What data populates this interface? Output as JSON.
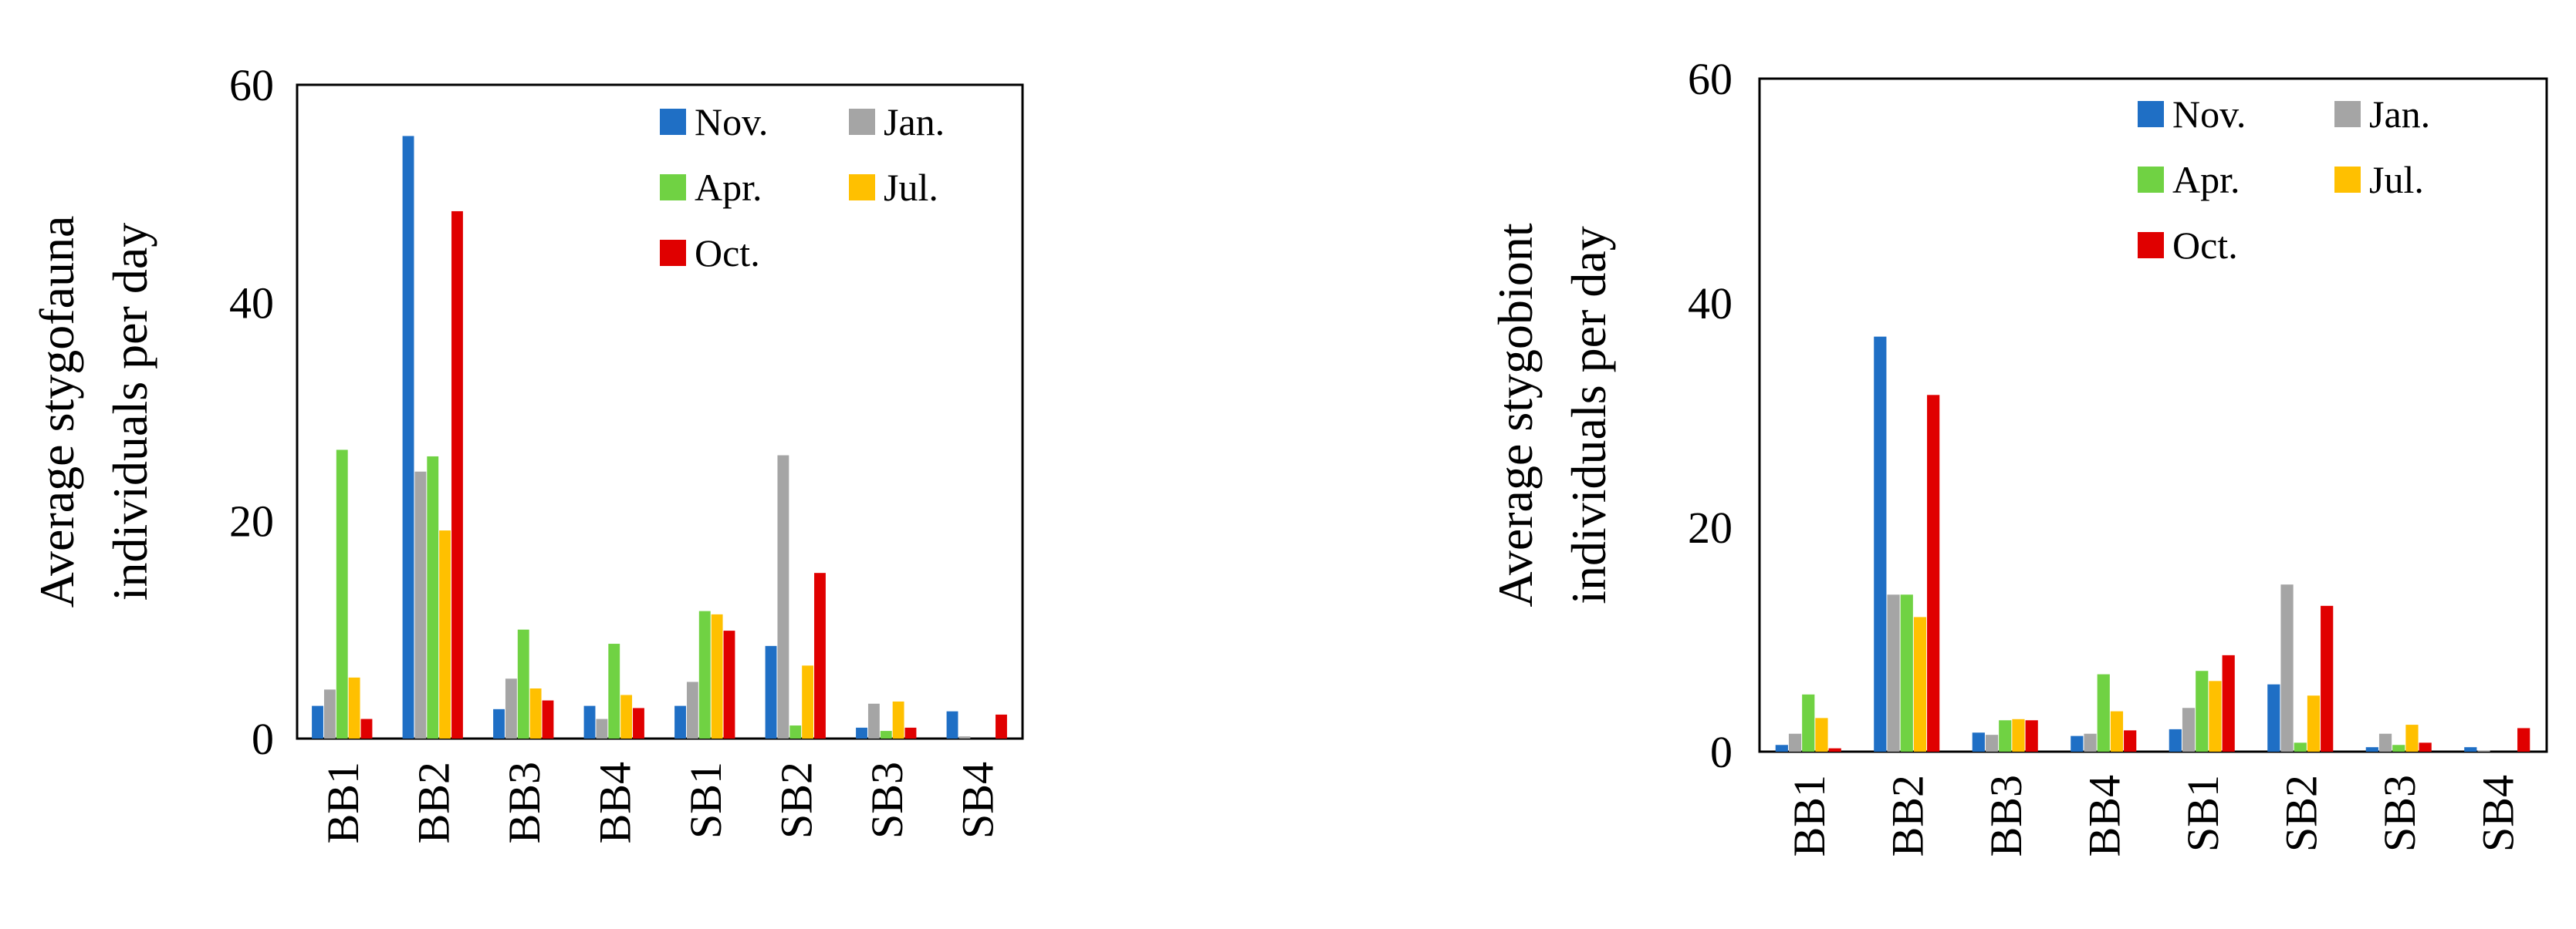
{
  "chart_data": [
    {
      "type": "bar",
      "ylabel_lines": [
        "Average stygofauna",
        "individuals per day"
      ],
      "ylim": [
        0,
        60
      ],
      "yticks": [
        0,
        20,
        40,
        60
      ],
      "legend_position": "top-right",
      "categories": [
        "BB1",
        "BB2",
        "BB3",
        "BB4",
        "SB1",
        "SB2",
        "SB3",
        "SB4"
      ],
      "series": [
        {
          "name": "Nov.",
          "color": "#1F6FC5",
          "values": [
            3.0,
            55.3,
            2.7,
            3.0,
            3.0,
            8.5,
            1.0,
            2.5
          ]
        },
        {
          "name": "Jan.",
          "color": "#A5A5A5",
          "values": [
            4.5,
            24.5,
            5.5,
            1.8,
            5.2,
            26.0,
            3.2,
            0.2
          ]
        },
        {
          "name": "Apr.",
          "color": "#70D243",
          "values": [
            26.5,
            25.9,
            10.0,
            8.7,
            11.7,
            1.2,
            0.7,
            0.0
          ]
        },
        {
          "name": "Jul.",
          "color": "#FFC000",
          "values": [
            5.6,
            19.1,
            4.6,
            4.0,
            11.4,
            6.7,
            3.4,
            0.0
          ]
        },
        {
          "name": "Oct.",
          "color": "#E00000",
          "values": [
            1.8,
            48.4,
            3.5,
            2.8,
            9.9,
            15.2,
            1.0,
            2.2
          ]
        }
      ]
    },
    {
      "type": "bar",
      "ylabel_lines": [
        "Average stygobiont",
        "individuals per day"
      ],
      "ylim": [
        0,
        60
      ],
      "yticks": [
        0,
        20,
        40,
        60
      ],
      "legend_position": "top-right",
      "categories": [
        "BB1",
        "BB2",
        "BB3",
        "BB4",
        "SB1",
        "SB2",
        "SB3",
        "SB4"
      ],
      "series": [
        {
          "name": "Nov.",
          "color": "#1F6FC5",
          "values": [
            0.6,
            37.0,
            1.7,
            1.4,
            2.0,
            6.0,
            0.4,
            0.4
          ]
        },
        {
          "name": "Jan.",
          "color": "#A5A5A5",
          "values": [
            1.6,
            14.0,
            1.5,
            1.6,
            3.9,
            14.9,
            1.6,
            0.1
          ]
        },
        {
          "name": "Apr.",
          "color": "#70D243",
          "values": [
            5.1,
            14.0,
            2.8,
            6.9,
            7.2,
            0.8,
            0.6,
            0.0
          ]
        },
        {
          "name": "Jul.",
          "color": "#FFC000",
          "values": [
            3.0,
            12.0,
            2.9,
            3.6,
            6.3,
            5.0,
            2.4,
            0.0
          ]
        },
        {
          "name": "Oct.",
          "color": "#E00000",
          "values": [
            0.3,
            31.8,
            2.8,
            1.9,
            8.6,
            13.0,
            0.8,
            2.1
          ]
        }
      ]
    }
  ]
}
